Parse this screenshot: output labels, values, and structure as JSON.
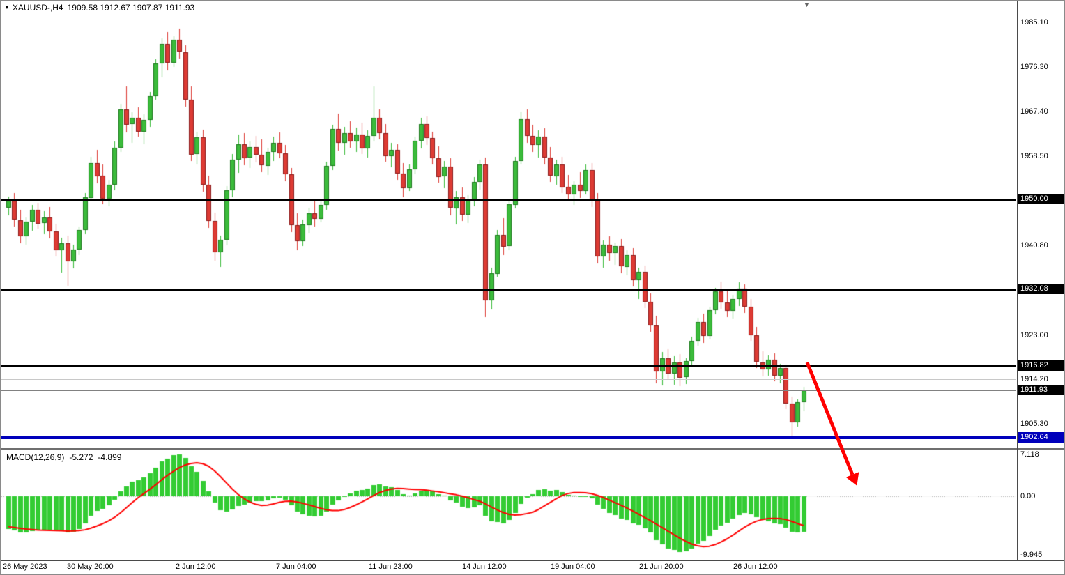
{
  "titlebar": {
    "symbol_period": "XAUUSD-,H4",
    "ohlc_text": "1909.58 1912.67 1907.87 1911.93"
  },
  "icons": {
    "one_click_arrow": "▼",
    "chart_shift_marker": "▼"
  },
  "colors": {
    "bull": "#3bbb3b",
    "bear": "#dd3b34",
    "bull_border": "#1d7a1d",
    "bear_border": "#8c1a1a",
    "macd_histogram": "#33cc33",
    "macd_signal": "#ff0000",
    "level_black": "#000000",
    "level_blue": "#0000bb",
    "arrow": "#ff0000",
    "axis_text": "#000000"
  },
  "price_axis": {
    "plain_ticks": [
      1985.1,
      1976.3,
      1967.4,
      1958.5,
      1940.8,
      1923.0,
      1914.2,
      1905.3
    ],
    "badges": [
      {
        "value": 1950.0,
        "label": "1950.00",
        "bg": "#000000"
      },
      {
        "value": 1932.08,
        "label": "1932.08",
        "bg": "#000000"
      },
      {
        "value": 1916.82,
        "label": "1916.82",
        "bg": "#000000"
      },
      {
        "value": 1911.93,
        "label": "1911.93",
        "bg": "#000000"
      },
      {
        "value": 1902.64,
        "label": "1902.64",
        "bg": "#0000bb"
      }
    ]
  },
  "levels": [
    {
      "value": 1950.0,
      "style": "thick",
      "color": "#000000",
      "thickness": 3
    },
    {
      "value": 1932.08,
      "style": "thick",
      "color": "#000000",
      "thickness": 3
    },
    {
      "value": 1916.82,
      "style": "thick",
      "color": "#000000",
      "thickness": 3
    },
    {
      "value": 1914.2,
      "style": "thin",
      "color": "#c8c8c8",
      "thickness": 1
    },
    {
      "value": 1911.93,
      "style": "thin",
      "color": "#818181",
      "thickness": 1
    },
    {
      "value": 1902.64,
      "style": "thick",
      "color": "#0000bb",
      "thickness": 4
    }
  ],
  "time_axis": {
    "labels": [
      {
        "text": "26 May 2023",
        "bar": 0
      },
      {
        "text": "30 May 20:00",
        "bar": 14
      },
      {
        "text": "2 Jun 12:00",
        "bar": 32
      },
      {
        "text": "7 Jun 04:00",
        "bar": 49
      },
      {
        "text": "11 Jun 23:00",
        "bar": 65
      },
      {
        "text": "14 Jun 12:00",
        "bar": 81
      },
      {
        "text": "19 Jun 04:00",
        "bar": 96
      },
      {
        "text": "21 Jun 20:00",
        "bar": 111
      },
      {
        "text": "26 Jun 12:00",
        "bar": 127
      }
    ]
  },
  "macd_panel": {
    "label": "MACD(12,26,9)",
    "value_macd": "-5.272",
    "value_signal": "-4.899",
    "axis_ticks": [
      {
        "value": 7.118,
        "label": "7.118"
      },
      {
        "value": 0,
        "label": "0.00"
      },
      {
        "value": -9.945,
        "label": "-9.945"
      }
    ],
    "range": [
      -9.945,
      7.118
    ],
    "params": {
      "fast": 12,
      "slow": 26,
      "signal": 9
    }
  },
  "chart_data": {
    "type": "candlestick",
    "symbol": "XAUUSD-",
    "timeframe": "H4",
    "current_bar": {
      "open": 1909.58,
      "high": 1912.67,
      "low": 1907.87,
      "close": 1911.93
    },
    "price_range": {
      "top": 1988.7,
      "bottom": 1901.2
    },
    "candles_ohlc": [
      [
        1948.2,
        1950.5,
        1946.8,
        1949.6
      ],
      [
        1949.6,
        1951.2,
        1944.5,
        1945.8
      ],
      [
        1945.8,
        1947.9,
        1941.2,
        1942.6
      ],
      [
        1942.6,
        1946.4,
        1940.9,
        1945.5
      ],
      [
        1945.5,
        1948.8,
        1943.7,
        1947.9
      ],
      [
        1947.9,
        1949.3,
        1944.1,
        1945.2
      ],
      [
        1945.2,
        1947.6,
        1943.0,
        1946.3
      ],
      [
        1946.3,
        1948.4,
        1942.2,
        1943.5
      ],
      [
        1943.5,
        1945.1,
        1938.6,
        1939.8
      ],
      [
        1939.8,
        1942.3,
        1935.4,
        1941.2
      ],
      [
        1941.2,
        1942.8,
        1932.8,
        1937.6
      ],
      [
        1937.6,
        1940.9,
        1936.2,
        1939.9
      ],
      [
        1939.9,
        1944.6,
        1938.8,
        1943.8
      ],
      [
        1943.8,
        1951.2,
        1943.0,
        1950.3
      ],
      [
        1950.3,
        1958.4,
        1949.6,
        1957.2
      ],
      [
        1957.2,
        1959.8,
        1953.1,
        1954.6
      ],
      [
        1954.6,
        1956.9,
        1948.9,
        1950.1
      ],
      [
        1950.1,
        1953.8,
        1948.6,
        1952.9
      ],
      [
        1952.9,
        1961.4,
        1951.8,
        1960.2
      ],
      [
        1960.2,
        1968.9,
        1959.4,
        1967.8
      ],
      [
        1967.8,
        1972.4,
        1963.2,
        1964.8
      ],
      [
        1964.8,
        1967.3,
        1961.1,
        1966.1
      ],
      [
        1966.1,
        1968.2,
        1962.4,
        1963.3
      ],
      [
        1963.3,
        1966.8,
        1960.9,
        1965.7
      ],
      [
        1965.7,
        1971.2,
        1964.3,
        1970.4
      ],
      [
        1970.4,
        1977.8,
        1969.8,
        1976.9
      ],
      [
        1976.9,
        1981.9,
        1974.2,
        1980.8
      ],
      [
        1980.8,
        1983.2,
        1975.6,
        1977.1
      ],
      [
        1977.1,
        1982.4,
        1976.3,
        1981.6
      ],
      [
        1981.6,
        1983.8,
        1977.9,
        1979.2
      ],
      [
        1979.2,
        1980.6,
        1968.4,
        1969.8
      ],
      [
        1969.8,
        1972.3,
        1957.6,
        1958.9
      ],
      [
        1958.9,
        1963.4,
        1956.8,
        1962.2
      ],
      [
        1962.2,
        1963.8,
        1951.4,
        1952.8
      ],
      [
        1952.8,
        1954.6,
        1944.2,
        1945.6
      ],
      [
        1945.6,
        1947.3,
        1937.8,
        1939.4
      ],
      [
        1939.4,
        1942.8,
        1936.5,
        1941.9
      ],
      [
        1941.9,
        1952.6,
        1940.8,
        1951.7
      ],
      [
        1951.7,
        1958.9,
        1950.4,
        1957.8
      ],
      [
        1957.8,
        1962.8,
        1955.2,
        1960.9
      ],
      [
        1960.9,
        1963.1,
        1956.7,
        1958.2
      ],
      [
        1958.2,
        1961.4,
        1956.1,
        1960.3
      ],
      [
        1960.3,
        1962.6,
        1957.3,
        1958.8
      ],
      [
        1958.8,
        1961.8,
        1955.4,
        1956.7
      ],
      [
        1956.7,
        1960.2,
        1954.8,
        1959.4
      ],
      [
        1959.4,
        1962.4,
        1957.6,
        1961.2
      ],
      [
        1961.2,
        1963.2,
        1958.1,
        1959.1
      ],
      [
        1959.1,
        1960.8,
        1953.6,
        1954.9
      ],
      [
        1954.9,
        1956.2,
        1943.4,
        1944.8
      ],
      [
        1944.8,
        1947.1,
        1939.8,
        1941.6
      ],
      [
        1941.6,
        1945.9,
        1940.7,
        1944.9
      ],
      [
        1944.9,
        1948.3,
        1943.2,
        1947.2
      ],
      [
        1947.2,
        1949.8,
        1944.6,
        1946.1
      ],
      [
        1946.1,
        1949.9,
        1945.3,
        1948.8
      ],
      [
        1948.8,
        1957.4,
        1947.9,
        1956.6
      ],
      [
        1956.6,
        1964.8,
        1955.8,
        1963.9
      ],
      [
        1963.9,
        1966.9,
        1959.6,
        1961.2
      ],
      [
        1961.2,
        1964.3,
        1958.8,
        1963.1
      ],
      [
        1963.1,
        1965.4,
        1960.2,
        1961.4
      ],
      [
        1961.4,
        1964.2,
        1959.3,
        1962.8
      ],
      [
        1962.8,
        1965.1,
        1958.9,
        1960.1
      ],
      [
        1960.1,
        1963.6,
        1958.2,
        1962.6
      ],
      [
        1962.6,
        1972.3,
        1961.4,
        1966.2
      ],
      [
        1966.2,
        1967.8,
        1961.8,
        1963.1
      ],
      [
        1963.1,
        1964.9,
        1957.4,
        1958.6
      ],
      [
        1958.6,
        1961.2,
        1956.3,
        1959.8
      ],
      [
        1959.8,
        1960.9,
        1953.8,
        1955.1
      ],
      [
        1955.1,
        1957.2,
        1950.4,
        1952.2
      ],
      [
        1952.2,
        1956.8,
        1951.6,
        1955.9
      ],
      [
        1955.9,
        1962.4,
        1954.9,
        1961.6
      ],
      [
        1961.6,
        1966.2,
        1960.1,
        1964.9
      ],
      [
        1964.9,
        1966.4,
        1960.8,
        1962.1
      ],
      [
        1962.1,
        1963.4,
        1956.8,
        1958.1
      ],
      [
        1958.1,
        1960.4,
        1953.2,
        1954.4
      ],
      [
        1954.4,
        1957.6,
        1952.1,
        1956.4
      ],
      [
        1956.4,
        1958.1,
        1946.8,
        1948.2
      ],
      [
        1948.2,
        1951.6,
        1944.9,
        1950.4
      ],
      [
        1950.4,
        1952.3,
        1945.6,
        1946.9
      ],
      [
        1946.9,
        1950.8,
        1945.2,
        1949.9
      ],
      [
        1949.9,
        1954.3,
        1948.6,
        1953.4
      ],
      [
        1953.4,
        1957.8,
        1951.9,
        1956.8
      ],
      [
        1956.8,
        1958.2,
        1926.5,
        1929.8
      ],
      [
        1929.8,
        1936.4,
        1928.1,
        1935.2
      ],
      [
        1935.2,
        1943.8,
        1934.6,
        1942.9
      ],
      [
        1942.9,
        1946.2,
        1938.9,
        1940.6
      ],
      [
        1940.6,
        1949.8,
        1939.8,
        1948.9
      ],
      [
        1948.9,
        1958.4,
        1948.2,
        1957.6
      ],
      [
        1957.6,
        1967.4,
        1956.9,
        1965.9
      ],
      [
        1965.9,
        1967.8,
        1961.2,
        1962.6
      ],
      [
        1962.6,
        1964.8,
        1959.4,
        1960.8
      ],
      [
        1960.8,
        1963.6,
        1958.2,
        1962.4
      ],
      [
        1962.4,
        1964.1,
        1956.9,
        1958.2
      ],
      [
        1958.2,
        1960.3,
        1953.4,
        1954.6
      ],
      [
        1954.6,
        1957.8,
        1952.8,
        1956.9
      ],
      [
        1956.9,
        1958.4,
        1951.2,
        1952.4
      ],
      [
        1952.4,
        1954.8,
        1949.6,
        1950.9
      ],
      [
        1950.9,
        1953.6,
        1948.8,
        1952.8
      ],
      [
        1952.8,
        1955.4,
        1950.2,
        1951.6
      ],
      [
        1951.6,
        1956.8,
        1950.9,
        1955.8
      ],
      [
        1955.8,
        1957.2,
        1948.4,
        1949.8
      ],
      [
        1949.8,
        1951.2,
        1937.2,
        1938.6
      ],
      [
        1938.6,
        1941.8,
        1936.4,
        1940.9
      ],
      [
        1940.9,
        1942.6,
        1937.8,
        1939.2
      ],
      [
        1939.2,
        1941.4,
        1936.9,
        1940.6
      ],
      [
        1940.6,
        1942.1,
        1935.2,
        1936.6
      ],
      [
        1936.6,
        1939.8,
        1934.8,
        1938.9
      ],
      [
        1938.9,
        1940.2,
        1932.6,
        1933.9
      ],
      [
        1933.9,
        1936.4,
        1930.1,
        1935.6
      ],
      [
        1935.6,
        1936.8,
        1928.4,
        1929.6
      ],
      [
        1929.6,
        1931.2,
        1923.6,
        1924.9
      ],
      [
        1924.9,
        1926.8,
        1913.4,
        1915.8
      ],
      [
        1915.8,
        1919.6,
        1912.9,
        1918.4
      ],
      [
        1918.4,
        1920.1,
        1914.2,
        1915.4
      ],
      [
        1915.4,
        1918.8,
        1913.1,
        1917.6
      ],
      [
        1917.6,
        1919.2,
        1912.8,
        1914.6
      ],
      [
        1914.6,
        1918.4,
        1913.2,
        1917.8
      ],
      [
        1917.8,
        1922.6,
        1916.9,
        1921.8
      ],
      [
        1921.8,
        1926.4,
        1920.8,
        1925.6
      ],
      [
        1925.6,
        1927.2,
        1921.4,
        1922.8
      ],
      [
        1922.8,
        1928.6,
        1922.1,
        1927.9
      ],
      [
        1927.9,
        1932.4,
        1927.1,
        1931.6
      ],
      [
        1931.6,
        1933.6,
        1928.2,
        1929.4
      ],
      [
        1929.4,
        1931.8,
        1926.6,
        1927.8
      ],
      [
        1927.8,
        1930.9,
        1926.2,
        1930.1
      ],
      [
        1930.1,
        1933.4,
        1928.8,
        1932.2
      ],
      [
        1932.2,
        1933.1,
        1927.4,
        1928.6
      ],
      [
        1928.6,
        1930.2,
        1921.8,
        1922.9
      ],
      [
        1922.9,
        1924.6,
        1916.4,
        1917.6
      ],
      [
        1917.6,
        1919.8,
        1914.8,
        1916.2
      ],
      [
        1916.2,
        1918.9,
        1914.9,
        1918.1
      ],
      [
        1918.1,
        1919.4,
        1913.8,
        1914.9
      ],
      [
        1914.9,
        1917.2,
        1913.4,
        1916.4
      ],
      [
        1916.4,
        1917.1,
        1908.2,
        1909.4
      ],
      [
        1909.4,
        1910.8,
        1902.9,
        1905.6
      ],
      [
        1905.6,
        1910.2,
        1904.8,
        1909.6
      ],
      [
        1909.58,
        1912.67,
        1907.87,
        1911.93
      ]
    ]
  }
}
